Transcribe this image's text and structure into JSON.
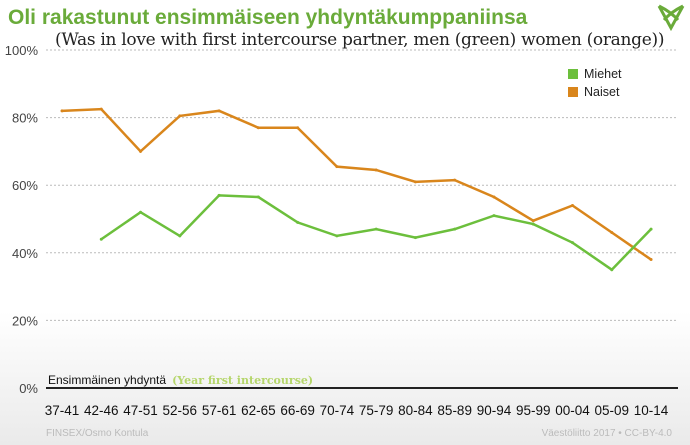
{
  "logo_icon": "vaestoliitto-heart-logo",
  "chart_data": {
    "type": "line",
    "title": "Oli rakastunut ensimmäiseen yhdyntäkumppaniinsa",
    "subtitle": "(Was in love with first intercourse partner, men (green) women (orange))",
    "xlabel": "Ensimmäinen yhdyntä",
    "xlabel_translation": "(Year first intercourse)",
    "ylabel": "",
    "ylim": [
      0,
      100
    ],
    "yticks": [
      "0%",
      "20%",
      "40%",
      "60%",
      "80%",
      "100%"
    ],
    "ytick_values": [
      0,
      20,
      40,
      60,
      80,
      100
    ],
    "grid": true,
    "legend_position": "top-right",
    "categories": [
      "37-41",
      "42-46",
      "47-51",
      "52-56",
      "57-61",
      "62-65",
      "66-69",
      "70-74",
      "75-79",
      "80-84",
      "85-89",
      "90-94",
      "95-99",
      "00-04",
      "05-09",
      "10-14"
    ],
    "series": [
      {
        "name": "Miehet",
        "color": "#6cbf3c",
        "values": [
          null,
          44,
          52,
          45,
          57,
          56.5,
          49,
          45,
          47,
          44.5,
          47,
          51,
          48.5,
          43,
          35,
          47
        ]
      },
      {
        "name": "Naiset",
        "color": "#d9861c",
        "values": [
          82,
          82.5,
          70,
          80.5,
          82,
          77,
          77,
          65.5,
          64.5,
          61,
          61.5,
          56.5,
          49.5,
          54,
          46,
          38
        ]
      }
    ]
  },
  "footer": {
    "source": "FINSEX/Osmo Kontula",
    "license": "Väestöliitto 2017 • CC-BY-4.0"
  }
}
